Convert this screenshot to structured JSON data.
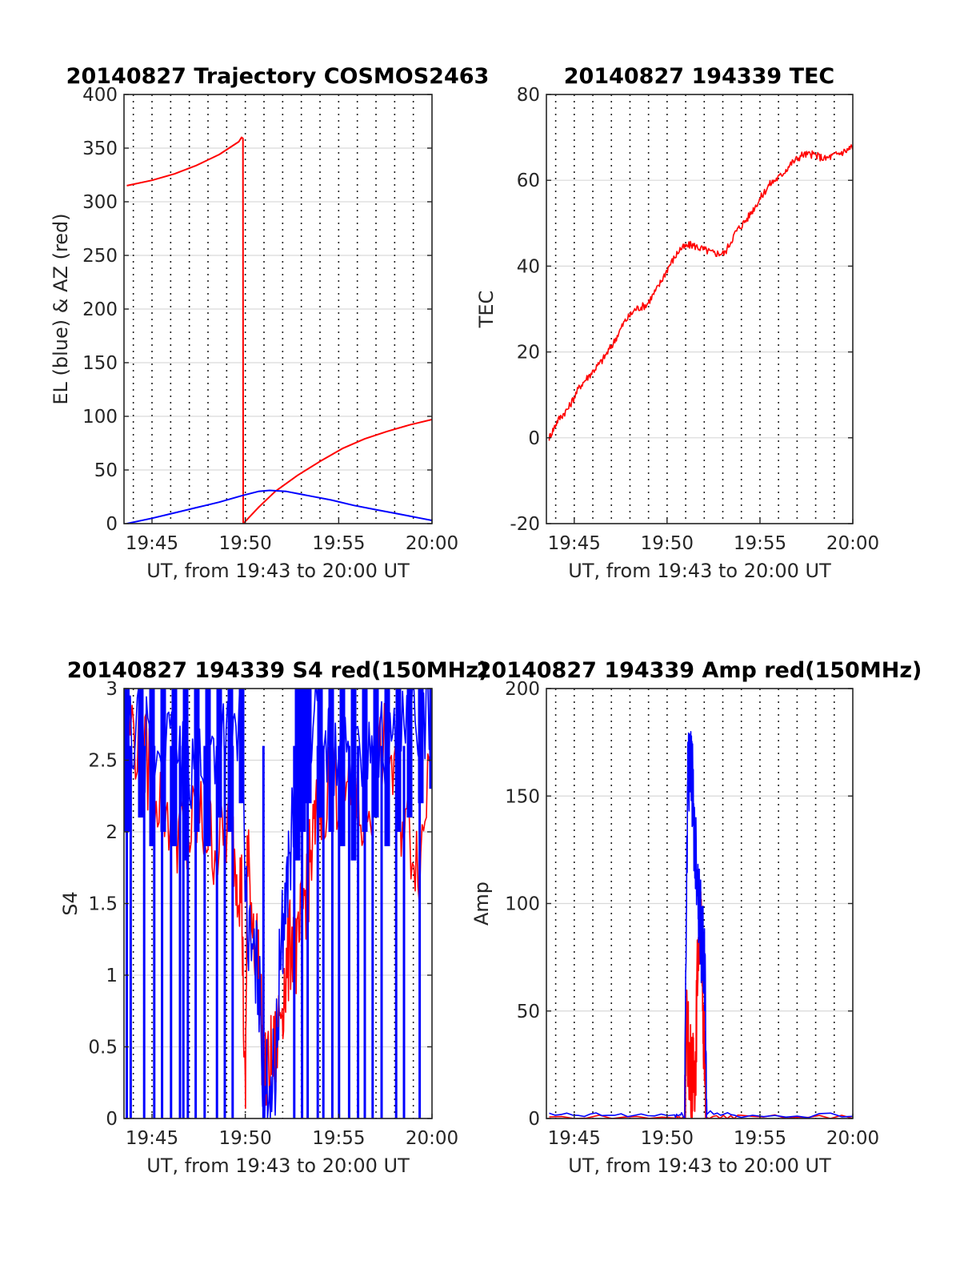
{
  "figure": {
    "background": "#ffffff"
  },
  "chart_data": [
    {
      "type": "line",
      "title": "20140827 Trajectory COSMOS2463",
      "xlabel": "UT, from 19:43 to 20:00 UT",
      "ylabel": "EL (blue) & AZ (red)",
      "xlim": [
        19.725,
        20.0
      ],
      "ylim": [
        0,
        400
      ],
      "xticks": [
        19.75,
        19.8333,
        19.9167,
        20.0
      ],
      "xtick_labels": [
        "19:45",
        "19:50",
        "19:55",
        "20:00"
      ],
      "yticks": [
        0,
        50,
        100,
        150,
        200,
        250,
        300,
        350,
        400
      ],
      "ytick_labels": [
        "0",
        "50",
        "100",
        "150",
        "200",
        "250",
        "300",
        "350",
        "400"
      ],
      "grid": true,
      "series": [
        {
          "color": "#ff0000",
          "x": [
            19.7275,
            19.75,
            19.77,
            19.79,
            19.81,
            19.8275,
            19.83,
            19.8312,
            19.8314,
            19.845,
            19.86,
            19.88,
            19.9,
            19.92,
            19.94,
            19.96,
            19.98,
            20.0
          ],
          "y": [
            315,
            320,
            326,
            334,
            344,
            356,
            360,
            359,
            0,
            15,
            30,
            45,
            58,
            70,
            79,
            86,
            92,
            97
          ]
        },
        {
          "color": "#0000ff",
          "x": [
            19.7275,
            19.75,
            19.77,
            19.79,
            19.81,
            19.83,
            19.845,
            19.855,
            19.87,
            19.89,
            19.91,
            19.93,
            19.95,
            19.97,
            19.99,
            20.0
          ],
          "y": [
            0,
            5,
            10,
            15,
            20,
            26,
            30,
            31,
            30,
            26,
            22,
            17,
            13,
            9,
            5,
            3
          ]
        }
      ]
    },
    {
      "type": "line",
      "title": "20140827 194339 TEC",
      "xlabel": "UT, from 19:43 to 20:00 UT",
      "ylabel": "TEC",
      "xlim": [
        19.725,
        20.0
      ],
      "ylim": [
        -20,
        80
      ],
      "xticks": [
        19.75,
        19.8333,
        19.9167,
        20.0
      ],
      "xtick_labels": [
        "19:45",
        "19:50",
        "19:55",
        "20:00"
      ],
      "yticks": [
        -20,
        0,
        20,
        40,
        60,
        80
      ],
      "ytick_labels": [
        "-20",
        "0",
        "20",
        "40",
        "60",
        "80"
      ],
      "grid": true,
      "series": [
        {
          "color": "#ff0000",
          "noise": 0.9,
          "x": [
            19.7275,
            19.735,
            19.745,
            19.755,
            19.765,
            19.775,
            19.785,
            19.795,
            19.805,
            19.815,
            19.825,
            19.835,
            19.845,
            19.855,
            19.865,
            19.875,
            19.885,
            19.895,
            19.905,
            19.915,
            19.925,
            19.935,
            19.945,
            19.955,
            19.965,
            19.975,
            19.985,
            19.995,
            20.0
          ],
          "y": [
            0,
            4,
            7,
            12,
            15,
            18,
            22,
            27,
            30,
            31,
            35,
            40,
            44,
            45,
            44,
            43,
            43,
            48,
            51,
            55,
            59,
            61,
            64,
            66,
            66,
            65,
            66,
            67,
            68
          ]
        }
      ]
    },
    {
      "type": "line",
      "title": "20140827 194339 S4 red(150MHz)",
      "xlabel": "UT, from 19:43 to 20:00 UT",
      "ylabel": "S4",
      "xlim": [
        19.725,
        20.0
      ],
      "ylim": [
        0,
        3
      ],
      "xticks": [
        19.75,
        19.8333,
        19.9167,
        20.0
      ],
      "xtick_labels": [
        "19:45",
        "19:50",
        "19:55",
        "20:00"
      ],
      "yticks": [
        0,
        0.5,
        1,
        1.5,
        2,
        2.5,
        3
      ],
      "ytick_labels": [
        "0",
        "0.5",
        "1",
        "1.5",
        "2",
        "2.5",
        "3"
      ],
      "grid": true,
      "series": [
        {
          "color": "#ff0000",
          "x": [
            19.7275,
            19.74,
            19.75,
            19.76,
            19.77,
            19.78,
            19.79,
            19.8,
            19.81,
            19.82,
            19.825,
            19.83,
            19.8333,
            19.835,
            19.84,
            19.845,
            19.85,
            19.855,
            19.86,
            19.865,
            19.87,
            19.875,
            19.88,
            19.885,
            19.89,
            19.895,
            19.9,
            19.91,
            19.92,
            19.93,
            19.94,
            19.95,
            19.96,
            19.97,
            19.98,
            19.99,
            20.0
          ],
          "y": [
            2.8,
            2.6,
            2.4,
            2.2,
            2.1,
            1.9,
            2.1,
            2.0,
            1.9,
            2.1,
            1.8,
            1.6,
            0.0,
            1.8,
            1.4,
            1.1,
            0.25,
            0.35,
            0.45,
            0.8,
            1.0,
            1.3,
            1.1,
            1.5,
            1.7,
            2.0,
            2.2,
            2.4,
            2.3,
            2.2,
            2.1,
            2.4,
            2.6,
            2.2,
            2.0,
            1.8,
            2.8
          ]
        },
        {
          "color": "#0000ff",
          "x": [
            19.7275,
            19.74,
            19.75,
            19.76,
            19.77,
            19.78,
            19.79,
            19.8,
            19.81,
            19.82,
            19.83,
            19.835,
            19.84,
            19.845,
            19.85,
            19.855,
            19.86,
            19.865,
            19.87,
            19.875,
            19.88,
            19.885,
            19.89,
            19.9,
            19.91,
            19.92,
            19.93,
            19.94,
            19.95,
            19.96,
            19.97,
            19.98,
            19.99,
            20.0
          ],
          "y": [
            2.6,
            2.7,
            2.5,
            2.6,
            2.5,
            2.4,
            2.6,
            2.5,
            2.7,
            2.6,
            2.8,
            1.3,
            1.1,
            1.0,
            0.2,
            0.25,
            0.3,
            1.2,
            1.6,
            2.0,
            2.4,
            2.6,
            2.8,
            2.7,
            2.6,
            2.5,
            2.4,
            2.6,
            2.7,
            2.5,
            2.6,
            2.7,
            2.8,
            2.9
          ],
          "drop_x": [
            19.7275,
            19.731,
            19.743,
            19.752,
            19.759,
            19.767,
            19.775,
            19.778,
            19.782,
            19.789,
            19.797,
            19.808,
            19.815,
            19.822,
            19.8495,
            19.877,
            19.884,
            19.889,
            19.898,
            19.903,
            19.911,
            19.917,
            19.926,
            19.934,
            19.94,
            19.947,
            19.955,
            19.968,
            19.975,
            19.989
          ]
        }
      ]
    },
    {
      "type": "line",
      "title": "20140827 194339 Amp red(150MHz)",
      "xlabel": "UT, from 19:43 to 20:00 UT",
      "ylabel": "Amp",
      "xlim": [
        19.725,
        20.0
      ],
      "ylim": [
        0,
        200
      ],
      "xticks": [
        19.75,
        19.8333,
        19.9167,
        20.0
      ],
      "xtick_labels": [
        "19:45",
        "19:50",
        "19:55",
        "20:00"
      ],
      "yticks": [
        0,
        50,
        100,
        150,
        200
      ],
      "ytick_labels": [
        "0",
        "50",
        "100",
        "150",
        "200"
      ],
      "grid": true,
      "series": [
        {
          "color": "#ff0000",
          "x": [
            19.7275,
            19.84,
            19.849,
            19.851,
            19.853,
            19.855,
            19.857,
            19.859,
            19.861,
            19.863,
            19.865,
            19.8665,
            19.868,
            19.9,
            20.0
          ],
          "y": [
            0,
            0,
            0,
            40,
            30,
            22,
            18,
            28,
            80,
            95,
            70,
            35,
            0,
            0,
            0
          ]
        },
        {
          "color": "#0000ff",
          "x": [
            19.7275,
            19.78,
            19.84,
            19.849,
            19.851,
            19.852,
            19.854,
            19.856,
            19.858,
            19.86,
            19.862,
            19.864,
            19.866,
            19.8675,
            19.869,
            19.9,
            20.0
          ],
          "y": [
            1,
            1,
            1,
            1,
            120,
            160,
            170,
            155,
            130,
            120,
            100,
            85,
            75,
            60,
            2,
            1,
            1
          ]
        }
      ]
    }
  ]
}
